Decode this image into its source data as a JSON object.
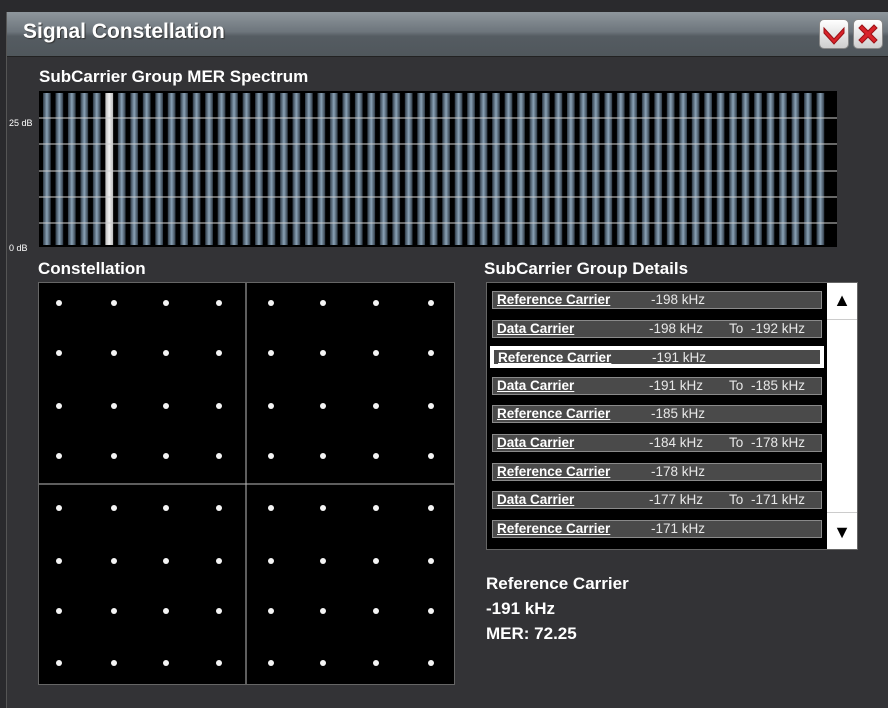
{
  "window": {
    "title": "Signal Constellation"
  },
  "titlebar_buttons": {
    "minimize_icon": "chevron-down-icon",
    "close_icon": "close-icon"
  },
  "spectrum": {
    "title": "SubCarrier Group MER Spectrum",
    "y_top_label": "25 dB",
    "y_bottom_label": "0 dB"
  },
  "constellation": {
    "title": "Constellation"
  },
  "details": {
    "title": "SubCarrier Group Details",
    "rows": [
      {
        "kind": "Reference Carrier",
        "freq": "-198 kHz",
        "to": "",
        "freq2": "",
        "selected": false
      },
      {
        "kind": "Data Carrier",
        "freq": "-198 kHz",
        "to": "To",
        "freq2": "-192 kHz",
        "selected": false
      },
      {
        "kind": "Reference Carrier",
        "freq": "-191 kHz",
        "to": "",
        "freq2": "",
        "selected": true
      },
      {
        "kind": "Data Carrier",
        "freq": "-191 kHz",
        "to": "To",
        "freq2": "-185 kHz",
        "selected": false
      },
      {
        "kind": "Reference Carrier",
        "freq": "-185 kHz",
        "to": "",
        "freq2": "",
        "selected": false
      },
      {
        "kind": "Data Carrier",
        "freq": "-184 kHz",
        "to": "To",
        "freq2": "-178 kHz",
        "selected": false
      },
      {
        "kind": "Reference Carrier",
        "freq": "-178 kHz",
        "to": "",
        "freq2": "",
        "selected": false
      },
      {
        "kind": "Data Carrier",
        "freq": "-177 kHz",
        "to": "To",
        "freq2": "-171 kHz",
        "selected": false
      },
      {
        "kind": "Reference Carrier",
        "freq": "-171 kHz",
        "to": "",
        "freq2": "",
        "selected": false
      }
    ],
    "scroll_up": "▲",
    "scroll_down": "▼"
  },
  "selected_info": {
    "kind": "Reference Carrier",
    "freq": "-191 kHz",
    "mer": "MER: 72.25"
  },
  "colors": {
    "titlebar": "#6d757c",
    "panel_bg": "#333336",
    "plot_bg": "#000000",
    "bar_highlight": "#d8d8d8",
    "bar_normal": "#6a8296"
  }
}
